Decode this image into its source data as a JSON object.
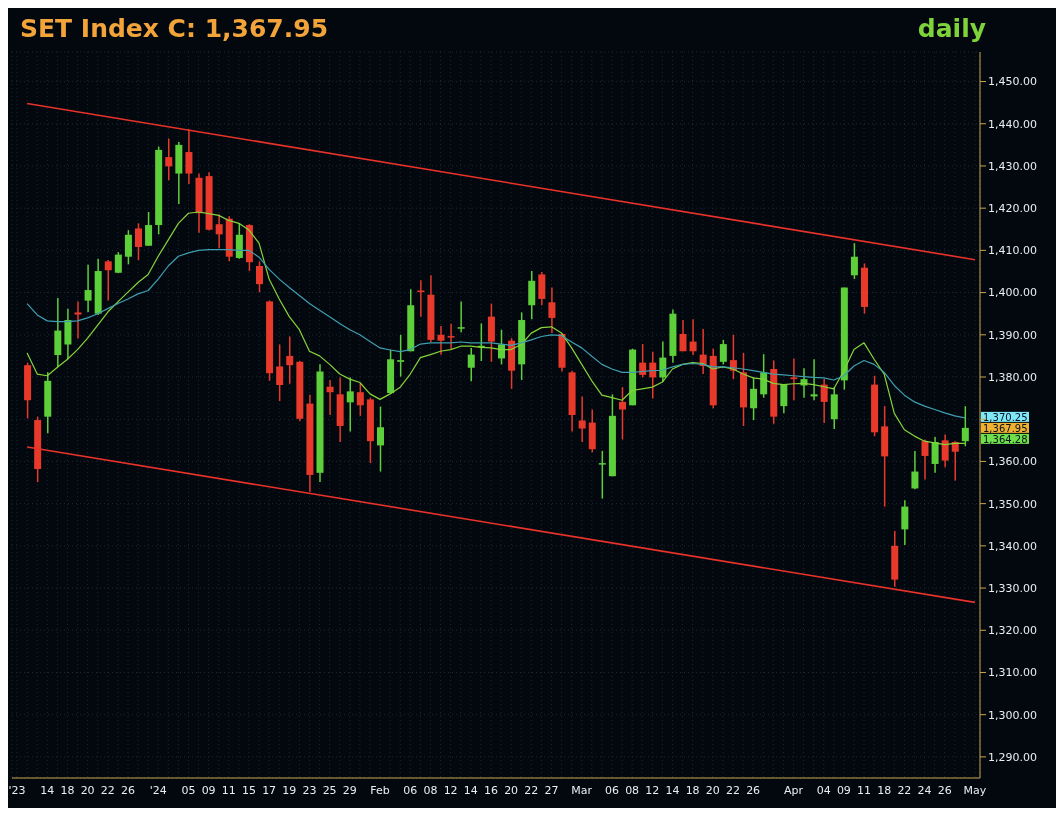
{
  "chart_data": {
    "type": "candlestick",
    "title": "SET Index C: 1,367.95",
    "subtitle": "daily",
    "categories": [
      "'23",
      null,
      null,
      "14",
      null,
      "18",
      null,
      "20",
      null,
      "22",
      null,
      "26",
      null,
      null,
      "'24",
      null,
      null,
      "05",
      null,
      "09",
      null,
      "11",
      null,
      "15",
      null,
      "17",
      null,
      "19",
      null,
      "23",
      null,
      "25",
      null,
      "29",
      null,
      null,
      "Feb",
      null,
      null,
      "06",
      null,
      "08",
      null,
      "12",
      null,
      "14",
      null,
      "16",
      null,
      "20",
      null,
      "22",
      null,
      "27",
      null,
      null,
      "Mar",
      null,
      null,
      "06",
      null,
      "08",
      null,
      "12",
      null,
      "14",
      null,
      "18",
      null,
      "20",
      null,
      "22",
      null,
      "26",
      null,
      null,
      null,
      "Apr",
      null,
      null,
      "04",
      null,
      "09",
      null,
      "11",
      null,
      "18",
      null,
      "22",
      null,
      "24",
      null,
      "26",
      null,
      null,
      "May"
    ],
    "ohlc": [
      null,
      [
        1382.8,
        1383.4,
        1370.2,
        1374.5
      ],
      [
        1369.8,
        1370.6,
        1355.1,
        1358.2
      ],
      [
        1370.6,
        1381.1,
        1366.7,
        1379.1
      ],
      [
        1385.2,
        1398.7,
        1382.3,
        1391.0
      ],
      [
        1387.7,
        1396.2,
        1384.2,
        1393.5
      ],
      [
        1395.3,
        1397.9,
        1389.1,
        1394.8
      ],
      [
        1398.1,
        1406.6,
        1395.4,
        1400.6
      ],
      [
        1395.0,
        1408.0,
        1394.7,
        1405.1
      ],
      [
        1407.4,
        1407.7,
        1398.1,
        1405.3
      ],
      [
        1404.7,
        1409.6,
        1404.6,
        1409.0
      ],
      [
        1408.5,
        1414.8,
        1406.7,
        1413.7
      ],
      [
        1415.2,
        1416.4,
        1407.7,
        1410.8
      ],
      [
        1411.1,
        1419.1,
        1411.1,
        1416.0
      ],
      [
        1416.0,
        1434.6,
        1413.8,
        1433.8
      ],
      [
        1432.1,
        1436.5,
        1426.6,
        1429.9
      ],
      [
        1428.2,
        1435.7,
        1421.0,
        1435.0
      ],
      [
        1433.3,
        1438.7,
        1425.7,
        1428.2
      ],
      [
        1427.2,
        1428.2,
        1414.2,
        1418.8
      ],
      [
        1427.6,
        1428.5,
        1414.7,
        1414.9
      ],
      [
        1416.2,
        1418.5,
        1410.5,
        1413.8
      ],
      [
        1417.5,
        1418.1,
        1407.4,
        1408.5
      ],
      [
        1408.2,
        1416.5,
        1408.0,
        1413.7
      ],
      [
        1416.0,
        1416.2,
        1405.1,
        1407.2
      ],
      [
        1406.3,
        1407.4,
        1400.1,
        1402.0
      ],
      [
        1397.9,
        1398.1,
        1379.1,
        1380.9
      ],
      [
        1382.5,
        1387.7,
        1374.3,
        1378.1
      ],
      [
        1385.0,
        1389.6,
        1378.4,
        1382.8
      ],
      [
        1383.6,
        1383.8,
        1369.5,
        1370.1
      ],
      [
        1373.7,
        1375.8,
        1352.8,
        1356.8
      ],
      [
        1357.3,
        1383.0,
        1355.1,
        1381.3
      ],
      [
        1377.7,
        1379.3,
        1371.0,
        1376.4
      ],
      [
        1375.9,
        1379.9,
        1364.6,
        1368.4
      ],
      [
        1374.0,
        1379.9,
        1367.1,
        1376.6
      ],
      [
        1376.4,
        1378.5,
        1370.8,
        1373.3
      ],
      [
        1374.7,
        1375.1,
        1359.6,
        1364.8
      ],
      [
        1363.8,
        1373.0,
        1357.6,
        1368.1
      ],
      [
        1376.2,
        1386.5,
        1376.0,
        1384.2
      ],
      [
        1383.6,
        1390.0,
        1380.1,
        1384.0
      ],
      [
        1386.1,
        1400.8,
        1386.1,
        1397.0
      ],
      [
        1400.5,
        1402.9,
        1394.3,
        1400.1
      ],
      [
        1399.5,
        1404.1,
        1388.3,
        1388.8
      ],
      [
        1390.0,
        1392.1,
        1385.3,
        1388.6
      ],
      [
        1389.7,
        1392.6,
        1386.7,
        1389.4
      ],
      [
        1391.5,
        1397.9,
        1390.6,
        1391.8
      ],
      [
        1382.2,
        1386.9,
        1379.0,
        1385.3
      ],
      [
        1387.2,
        1392.7,
        1383.8,
        1387.4
      ],
      [
        1394.3,
        1397.4,
        1383.6,
        1388.4
      ],
      [
        1384.4,
        1391.2,
        1383.0,
        1387.7
      ],
      [
        1388.6,
        1389.2,
        1377.2,
        1381.5
      ],
      [
        1383.0,
        1395.3,
        1379.3,
        1393.5
      ],
      [
        1397.0,
        1405.1,
        1393.7,
        1402.8
      ],
      [
        1404.3,
        1404.9,
        1397.0,
        1398.5
      ],
      [
        1397.7,
        1401.2,
        1390.4,
        1394.0
      ],
      [
        1390.2,
        1390.4,
        1381.3,
        1382.2
      ],
      [
        1381.1,
        1381.5,
        1367.1,
        1371.0
      ],
      [
        1369.7,
        1375.4,
        1364.6,
        1367.8
      ],
      [
        1369.2,
        1372.3,
        1362.2,
        1362.9
      ],
      [
        1359.3,
        1362.5,
        1351.2,
        1359.6
      ],
      [
        1356.5,
        1375.9,
        1356.5,
        1370.8
      ],
      [
        1374.1,
        1377.6,
        1365.2,
        1372.3
      ],
      [
        1373.3,
        1386.7,
        1373.3,
        1386.5
      ],
      [
        1383.4,
        1387.8,
        1379.9,
        1380.5
      ],
      [
        1383.4,
        1386.0,
        1374.9,
        1379.9
      ],
      [
        1379.9,
        1388.4,
        1378.8,
        1384.6
      ],
      [
        1385.0,
        1396.0,
        1383.4,
        1395.0
      ],
      [
        1390.2,
        1393.5,
        1386.1,
        1386.1
      ],
      [
        1388.4,
        1393.7,
        1385.2,
        1386.1
      ],
      [
        1385.3,
        1391.4,
        1380.7,
        1382.6
      ],
      [
        1385.0,
        1386.7,
        1372.6,
        1373.3
      ],
      [
        1383.6,
        1388.8,
        1383.0,
        1387.8
      ],
      [
        1384.0,
        1390.0,
        1379.5,
        1381.5
      ],
      [
        1381.1,
        1385.7,
        1368.4,
        1372.8
      ],
      [
        1372.6,
        1379.9,
        1369.8,
        1377.2
      ],
      [
        1375.9,
        1385.4,
        1375.1,
        1381.1
      ],
      [
        1381.9,
        1383.9,
        1368.9,
        1370.6
      ],
      [
        1373.1,
        1378.2,
        1371.4,
        1378.2
      ],
      [
        1379.9,
        1384.4,
        1374.5,
        1379.5
      ],
      [
        1378.0,
        1382.1,
        1375.1,
        1379.5
      ],
      [
        1375.4,
        1384.2,
        1374.5,
        1375.9
      ],
      [
        1378.2,
        1379.5,
        1369.1,
        1374.1
      ],
      [
        1370.0,
        1377.6,
        1367.7,
        1375.9
      ],
      [
        1379.2,
        1401.2,
        1377.0,
        1401.2
      ],
      [
        1404.1,
        1411.7,
        1403.2,
        1408.5
      ],
      [
        1405.9,
        1406.9,
        1395.0,
        1396.6
      ],
      [
        1378.2,
        1380.3,
        1366.0,
        1366.9
      ],
      [
        1368.3,
        1373.1,
        1349.3,
        1361.2
      ],
      [
        1340.0,
        1343.5,
        1330.3,
        1332.0
      ],
      [
        1343.9,
        1350.8,
        1340.2,
        1349.3
      ],
      [
        1353.6,
        1362.5,
        1353.4,
        1357.6
      ],
      [
        1364.8,
        1365.2,
        1355.7,
        1361.3
      ],
      [
        1359.4,
        1365.8,
        1357.3,
        1364.6
      ],
      [
        1365.0,
        1366.4,
        1358.6,
        1360.2
      ],
      [
        1364.6,
        1364.8,
        1355.5,
        1362.3
      ],
      [
        1364.8,
        1373.1,
        1363.6,
        1367.95
      ],
      null
    ],
    "colors": [
      null,
      "#e8392b",
      "#e8392b",
      "#5ccf3a",
      "#5ccf3a",
      "#5ccf3a",
      "#e8392b",
      "#5ccf3a",
      "#5ccf3a",
      "#e8392b",
      "#5ccf3a",
      "#5ccf3a",
      "#e8392b",
      "#5ccf3a",
      "#5ccf3a",
      "#e8392b",
      "#5ccf3a",
      "#e8392b",
      "#e8392b",
      "#e8392b",
      "#e8392b",
      "#e8392b",
      "#5ccf3a",
      "#e8392b",
      "#e8392b",
      "#e8392b",
      "#e8392b",
      "#e8392b",
      "#e8392b",
      "#e8392b",
      "#5ccf3a",
      "#e8392b",
      "#e8392b",
      "#5ccf3a",
      "#e8392b",
      "#e8392b",
      "#5ccf3a",
      "#5ccf3a",
      "#5ccf3a",
      "#5ccf3a",
      "#e8392b",
      "#e8392b",
      "#e8392b",
      "#e8392b",
      "#5ccf3a",
      "#5ccf3a",
      "#5ccf3a",
      "#e8392b",
      "#5ccf3a",
      "#e8392b",
      "#5ccf3a",
      "#5ccf3a",
      "#e8392b",
      "#e8392b",
      "#e8392b",
      "#e8392b",
      "#e8392b",
      "#e8392b",
      "#5ccf3a",
      "#5ccf3a",
      "#e8392b",
      "#5ccf3a",
      "#e8392b",
      "#e8392b",
      "#5ccf3a",
      "#5ccf3a",
      "#e8392b",
      "#e8392b",
      "#e8392b",
      "#e8392b",
      "#5ccf3a",
      "#e8392b",
      "#e8392b",
      "#5ccf3a",
      "#5ccf3a",
      "#e8392b",
      "#5ccf3a",
      "#e8392b",
      "#5ccf3a",
      "#5ccf3a",
      "#e8392b",
      "#5ccf3a",
      "#5ccf3a",
      "#5ccf3a",
      "#e8392b",
      "#e8392b",
      "#e8392b",
      "#e8392b",
      "#5ccf3a",
      "#5ccf3a",
      "#e8392b",
      "#5ccf3a",
      "#e8392b",
      "#e8392b",
      "#5ccf3a",
      null
    ],
    "series": [
      {
        "type": "line",
        "color": "#86d43a",
        "values": [
          null,
          1385.7,
          1380.7,
          1380.3,
          1382.3,
          1384.2,
          1386.5,
          1389.2,
          1392.3,
          1395.4,
          1397.8,
          1400.1,
          1402.4,
          1404.3,
          1408.6,
          1412.5,
          1416.4,
          1418.8,
          1419.1,
          1418.7,
          1418.3,
          1417.1,
          1416.4,
          1414.8,
          1411.7,
          1403.2,
          1398.5,
          1394.3,
          1391.2,
          1386.1,
          1385.0,
          1383.0,
          1380.7,
          1379.5,
          1378.7,
          1376.0,
          1374.7,
          1376.0,
          1377.6,
          1380.7,
          1384.6,
          1385.3,
          1386.1,
          1386.5,
          1387.3,
          1387.3,
          1387.0,
          1386.9,
          1386.5,
          1386.5,
          1387.7,
          1390.4,
          1391.7,
          1391.9,
          1390.4,
          1386.9,
          1383.0,
          1379.1,
          1375.7,
          1375.1,
          1374.5,
          1376.8,
          1377.2,
          1377.6,
          1378.8,
          1381.9,
          1383.0,
          1383.4,
          1383.2,
          1381.9,
          1382.4,
          1381.9,
          1380.7,
          1379.8,
          1379.5,
          1378.5,
          1378.2,
          1378.4,
          1378.5,
          1378.2,
          1377.7,
          1377.2,
          1381.5,
          1386.5,
          1388.1,
          1384.2,
          1380.7,
          1371.4,
          1367.5,
          1366.0,
          1364.8,
          1364.4,
          1364.0,
          1364.3,
          1364.3,
          null
        ]
      },
      {
        "type": "line",
        "color": "#3f9fb0",
        "values": [
          null,
          1397.4,
          1394.7,
          1393.3,
          1393.1,
          1393.1,
          1393.3,
          1394.0,
          1395.0,
          1396.2,
          1397.4,
          1398.5,
          1399.7,
          1400.5,
          1403.2,
          1406.3,
          1408.6,
          1409.4,
          1410.0,
          1410.2,
          1410.2,
          1410.2,
          1410.0,
          1410.0,
          1408.4,
          1405.5,
          1403.2,
          1401.2,
          1399.3,
          1397.4,
          1395.8,
          1394.3,
          1392.7,
          1391.2,
          1390.0,
          1388.4,
          1386.9,
          1386.4,
          1386.0,
          1386.5,
          1387.8,
          1388.1,
          1388.1,
          1388.1,
          1388.3,
          1388.1,
          1388.1,
          1388.1,
          1387.8,
          1387.5,
          1388.1,
          1388.8,
          1389.6,
          1390.0,
          1389.8,
          1388.3,
          1386.9,
          1384.9,
          1383.0,
          1381.9,
          1381.1,
          1381.1,
          1381.3,
          1381.5,
          1381.6,
          1382.4,
          1383.0,
          1383.2,
          1383.0,
          1382.4,
          1382.4,
          1382.2,
          1381.9,
          1381.5,
          1381.1,
          1380.7,
          1380.5,
          1380.3,
          1380.1,
          1379.9,
          1379.8,
          1379.3,
          1380.3,
          1382.6,
          1383.9,
          1383.0,
          1381.1,
          1378.0,
          1375.7,
          1374.1,
          1373.1,
          1372.3,
          1371.5,
          1370.8,
          1370.3,
          null
        ]
      },
      {
        "type": "line",
        "color": "#e8322a",
        "values": [
          null,
          1444.8,
          null,
          null,
          null,
          null,
          null,
          null,
          null,
          null,
          null,
          null,
          null,
          null,
          null,
          null,
          null,
          null,
          null,
          null,
          null,
          null,
          null,
          null,
          null,
          null,
          null,
          null,
          null,
          null,
          null,
          null,
          null,
          null,
          null,
          null,
          null,
          null,
          null,
          null,
          null,
          null,
          null,
          null,
          null,
          null,
          null,
          null,
          null,
          null,
          null,
          null,
          null,
          null,
          null,
          null,
          null,
          null,
          null,
          null,
          null,
          null,
          null,
          null,
          null,
          null,
          null,
          null,
          null,
          null,
          null,
          null,
          null,
          null,
          null,
          null,
          null,
          null,
          null,
          null,
          null,
          null,
          null,
          null,
          null,
          null,
          null,
          null,
          null,
          null,
          null,
          null,
          null,
          null,
          null,
          1407.8
        ]
      },
      {
        "type": "line",
        "color": "#e8322a",
        "values": [
          null,
          1363.4,
          null,
          null,
          null,
          null,
          null,
          null,
          null,
          null,
          null,
          null,
          null,
          null,
          null,
          null,
          null,
          null,
          null,
          null,
          null,
          null,
          null,
          null,
          null,
          null,
          null,
          null,
          null,
          null,
          null,
          null,
          null,
          null,
          null,
          null,
          null,
          null,
          null,
          null,
          null,
          null,
          null,
          null,
          null,
          null,
          null,
          null,
          null,
          null,
          null,
          null,
          null,
          null,
          null,
          null,
          null,
          null,
          null,
          null,
          null,
          null,
          null,
          null,
          null,
          null,
          null,
          null,
          null,
          null,
          null,
          null,
          null,
          null,
          null,
          null,
          null,
          null,
          null,
          null,
          null,
          null,
          null,
          null,
          null,
          null,
          null,
          null,
          null,
          null,
          null,
          null,
          null,
          null,
          null,
          1326.6
        ]
      }
    ],
    "annotations": [
      "1,370.25",
      "1,367.95",
      "1,364.28"
    ],
    "ylim": [
      1285,
      1457
    ],
    "yticks": [
      {
        "value": 1290,
        "label": "1,290.00"
      },
      {
        "value": 1300,
        "label": "1,300.00"
      },
      {
        "value": 1310,
        "label": "1,310.00"
      },
      {
        "value": 1320,
        "label": "1,320.00"
      },
      {
        "value": 1330,
        "label": "1,330.00"
      },
      {
        "value": 1340,
        "label": "1,340.00"
      },
      {
        "value": 1350,
        "label": "1,350.00"
      },
      {
        "value": 1360,
        "label": "1,360.00"
      },
      {
        "value": 1370,
        "label": null
      },
      {
        "value": 1380,
        "label": "1,380.00"
      },
      {
        "value": 1390,
        "label": "1,390.00"
      },
      {
        "value": 1400,
        "label": "1,400.00"
      },
      {
        "value": 1410,
        "label": "1,410.00"
      },
      {
        "value": 1420,
        "label": "1,420.00"
      },
      {
        "value": 1430,
        "label": "1,430.00"
      },
      {
        "value": 1440,
        "label": "1,440.00"
      },
      {
        "value": 1450,
        "label": "1,450.00"
      }
    ],
    "grid": true,
    "legend": false,
    "marker": "none",
    "line_style": "solid"
  }
}
